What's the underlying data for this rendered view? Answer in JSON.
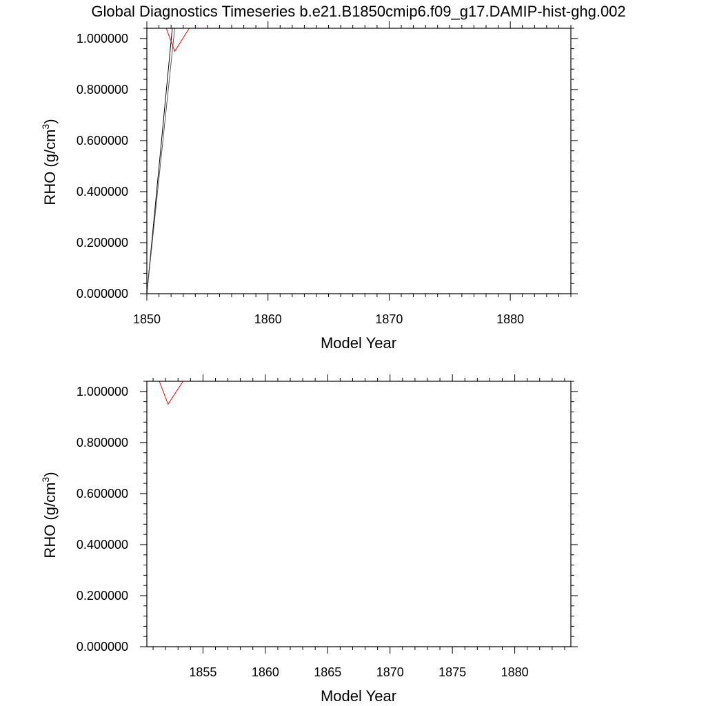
{
  "title": "Global Diagnostics Timeseries b.e21.B1850cmip6.f09_g17.DAMIP-hist-ghg.002",
  "colors": {
    "black_series": "#000000",
    "red_series": "#ff0000",
    "axis": "#000000"
  },
  "chart_data": [
    {
      "type": "line",
      "xlabel": "Model Year",
      "ylabel": "RHO (g/cm",
      "ylabel_superscript": "3",
      "ylabel_suffix": ")",
      "xlim": [
        1850,
        1885
      ],
      "ylim": [
        0,
        1.04
      ],
      "xticks": [
        1850,
        1860,
        1870,
        1880
      ],
      "xtick_labels": [
        "1850",
        "1860",
        "1870",
        "1880"
      ],
      "yticks": [
        0,
        0.2,
        0.4,
        0.6,
        0.8,
        1.0
      ],
      "ytick_labels": [
        "0.000000",
        "0.200000",
        "0.400000",
        "0.600000",
        "0.800000",
        "1.000000"
      ],
      "series": [
        {
          "color": "#000000",
          "x": [
            1850,
            1852.1,
            1885
          ],
          "y": [
            0,
            1.04,
            1.04
          ]
        },
        {
          "color": "#555555",
          "x": [
            1850,
            1852.3,
            1885
          ],
          "y": [
            0,
            1.04,
            1.04
          ]
        },
        {
          "color": "#ff0000",
          "x": [
            1851.6,
            1852.3,
            1853.5,
            1885
          ],
          "y": [
            1.04,
            0.95,
            1.04,
            1.04
          ]
        }
      ]
    },
    {
      "type": "line",
      "xlabel": "Model Year",
      "ylabel": "RHO (g/cm",
      "ylabel_superscript": "3",
      "ylabel_suffix": ")",
      "xlim": [
        1850.5,
        1884.5
      ],
      "ylim": [
        0,
        1.04
      ],
      "xticks": [
        1855,
        1860,
        1865,
        1870,
        1875,
        1880
      ],
      "xtick_labels": [
        "1855",
        "1860",
        "1865",
        "1870",
        "1875",
        "1880"
      ],
      "yticks": [
        0,
        0.2,
        0.4,
        0.6,
        0.8,
        1.0
      ],
      "ytick_labels": [
        "0.000000",
        "0.200000",
        "0.400000",
        "0.600000",
        "0.800000",
        "1.000000"
      ],
      "series": [
        {
          "color": "#000000",
          "x": [
            1850.5,
            1884.5
          ],
          "y": [
            1.04,
            1.04
          ]
        },
        {
          "color": "#ff0000",
          "x": [
            1851.5,
            1852.2,
            1853.4,
            1884.5
          ],
          "y": [
            1.04,
            0.95,
            1.04,
            1.04
          ]
        }
      ]
    }
  ]
}
